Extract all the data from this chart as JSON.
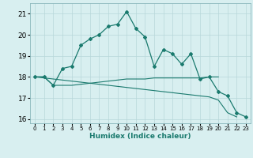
{
  "xlabel": "Humidex (Indice chaleur)",
  "x": [
    0,
    1,
    2,
    3,
    4,
    5,
    6,
    7,
    8,
    9,
    10,
    11,
    12,
    13,
    14,
    15,
    16,
    17,
    18,
    19,
    20,
    21,
    22,
    23
  ],
  "line1": [
    18.0,
    18.0,
    17.6,
    18.4,
    18.5,
    19.5,
    19.8,
    20.0,
    20.4,
    20.5,
    21.1,
    20.3,
    19.9,
    18.5,
    19.3,
    19.1,
    18.6,
    19.1,
    17.9,
    18.0,
    17.3,
    17.1,
    16.3,
    16.1
  ],
  "line2": [
    18.0,
    18.0,
    17.6,
    17.6,
    17.6,
    17.65,
    17.7,
    17.75,
    17.8,
    17.85,
    17.9,
    17.9,
    17.9,
    17.95,
    17.95,
    17.95,
    17.95,
    17.95,
    17.95,
    18.0,
    18.0,
    null,
    null,
    null
  ],
  "line3": [
    18.0,
    null,
    null,
    null,
    null,
    null,
    null,
    null,
    null,
    null,
    17.5,
    17.45,
    17.4,
    17.35,
    17.3,
    17.25,
    17.2,
    17.15,
    17.1,
    17.05,
    16.9,
    16.3,
    16.1,
    null
  ],
  "color": "#1a7a6e",
  "bg_color": "#d8eff0",
  "grid_color": "#b8d8da",
  "ylim": [
    15.8,
    21.5
  ],
  "xlim": [
    -0.5,
    23.5
  ],
  "yticks": [
    16,
    17,
    18,
    19,
    20,
    21
  ],
  "xticks": [
    0,
    1,
    2,
    3,
    4,
    5,
    6,
    7,
    8,
    9,
    10,
    11,
    12,
    13,
    14,
    15,
    16,
    17,
    18,
    19,
    20,
    21,
    22,
    23
  ]
}
